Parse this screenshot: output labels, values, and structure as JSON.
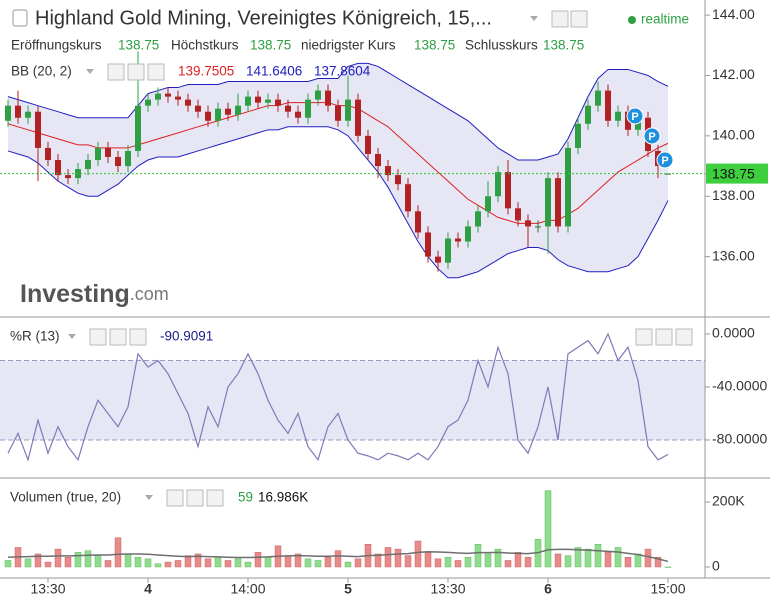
{
  "chart_data": [
    {
      "type": "candlestick",
      "title": "Highland Gold Mining, Vereinigtes Königreich, 15,...",
      "status": "realtime",
      "ohlc_names": [
        "Eröffnungskurs",
        "Höchstkurs",
        "niedrigster Kurs",
        "Schlusskurs"
      ],
      "categories": [
        null,
        null,
        null,
        null,
        "13:30",
        null,
        null,
        null,
        null,
        null,
        null,
        null,
        null,
        null,
        "4",
        null,
        null,
        null,
        null,
        null,
        null,
        null,
        null,
        null,
        "14:00",
        null,
        null,
        null,
        null,
        null,
        null,
        null,
        null,
        null,
        "5",
        null,
        null,
        null,
        null,
        null,
        null,
        null,
        null,
        null,
        "13:30",
        null,
        null,
        null,
        null,
        null,
        null,
        null,
        null,
        null,
        "6",
        null,
        null,
        null,
        null,
        null,
        null,
        null,
        null,
        null,
        null,
        null,
        "15:00"
      ],
      "open": [
        140.5,
        141.0,
        140.6,
        140.8,
        139.6,
        139.2,
        138.7,
        138.6,
        138.9,
        139.2,
        139.6,
        139.3,
        139.0,
        139.5,
        141.0,
        141.2,
        141.4,
        141.3,
        141.2,
        141.0,
        140.8,
        140.5,
        140.9,
        140.7,
        141.0,
        141.3,
        141.1,
        141.2,
        141.0,
        140.8,
        140.6,
        141.2,
        141.5,
        141.0,
        140.5,
        141.2,
        140.0,
        139.4,
        139.0,
        138.7,
        138.4,
        137.5,
        136.8,
        136.0,
        135.8,
        136.6,
        136.5,
        137.0,
        137.5,
        138.0,
        138.8,
        137.6,
        137.2,
        137.0,
        137.0,
        138.6,
        137.0,
        139.6,
        140.4,
        141.0,
        141.5,
        140.5,
        140.8,
        140.2,
        140.6,
        139.5,
        138.75
      ],
      "high": [
        141.2,
        141.5,
        141.0,
        141.0,
        139.8,
        139.4,
        138.9,
        139.1,
        139.4,
        139.8,
        139.8,
        139.5,
        139.7,
        142.8,
        141.4,
        141.6,
        141.6,
        141.5,
        141.4,
        141.2,
        141.0,
        141.1,
        141.1,
        141.4,
        141.5,
        141.5,
        141.4,
        141.4,
        141.2,
        141.0,
        141.4,
        141.7,
        141.7,
        141.2,
        142.0,
        141.4,
        140.2,
        139.6,
        139.2,
        138.9,
        138.6,
        137.7,
        137.0,
        136.2,
        136.8,
        136.8,
        137.2,
        137.7,
        138.5,
        139.0,
        139.2,
        137.8,
        137.4,
        137.2,
        138.8,
        138.8,
        139.8,
        140.6,
        141.2,
        141.8,
        141.7,
        141.0,
        141.0,
        140.8,
        140.8,
        139.7,
        138.75
      ],
      "low": [
        140.3,
        140.4,
        140.4,
        138.5,
        139.0,
        138.5,
        138.4,
        138.4,
        138.7,
        139.0,
        139.1,
        138.8,
        138.8,
        139.3,
        140.8,
        141.0,
        141.1,
        141.0,
        140.8,
        140.6,
        140.3,
        140.3,
        140.5,
        140.5,
        140.8,
        140.9,
        140.9,
        140.8,
        140.6,
        140.4,
        140.4,
        141.0,
        140.8,
        140.3,
        140.3,
        139.8,
        139.2,
        138.6,
        138.5,
        138.2,
        137.3,
        136.6,
        135.8,
        135.5,
        135.6,
        136.3,
        136.3,
        136.8,
        137.3,
        137.8,
        137.4,
        137.0,
        136.3,
        136.8,
        136.1,
        136.8,
        136.8,
        139.4,
        140.2,
        140.8,
        140.3,
        140.3,
        140.0,
        140.0,
        139.3,
        138.6,
        138.75
      ],
      "close": [
        141.0,
        140.6,
        140.8,
        139.6,
        139.2,
        138.7,
        138.6,
        138.9,
        139.2,
        139.6,
        139.3,
        139.0,
        139.5,
        141.0,
        141.2,
        141.4,
        141.3,
        141.2,
        141.0,
        140.8,
        140.5,
        140.9,
        140.7,
        141.0,
        141.3,
        141.1,
        141.2,
        141.0,
        140.8,
        140.6,
        141.2,
        141.5,
        141.0,
        140.5,
        141.2,
        140.0,
        139.4,
        139.0,
        138.7,
        138.4,
        137.5,
        136.8,
        136.0,
        135.8,
        136.6,
        136.5,
        137.0,
        137.5,
        138.0,
        138.8,
        137.6,
        137.2,
        137.0,
        137.0,
        138.6,
        137.0,
        139.6,
        140.4,
        141.0,
        141.5,
        140.5,
        140.8,
        140.2,
        140.6,
        139.5,
        139.0,
        138.75
      ],
      "up_color": "#2ea043",
      "down_color": "#b22222",
      "indicator": "BB (20, 2)",
      "bands": [
        {
          "color": "#e02020",
          "values": [
            140.4,
            140.3,
            140.2,
            140.1,
            140.0,
            139.9,
            139.8,
            139.7,
            139.7,
            139.6,
            139.6,
            139.6,
            139.6,
            139.7,
            139.8,
            139.9,
            140.0,
            140.1,
            140.2,
            140.3,
            140.4,
            140.5,
            140.6,
            140.7,
            140.8,
            140.9,
            141.0,
            141.0,
            141.1,
            141.1,
            141.1,
            141.1,
            141.1,
            141.0,
            141.0,
            140.9,
            140.7,
            140.5,
            140.3,
            140.0,
            139.7,
            139.4,
            139.1,
            138.8,
            138.5,
            138.2,
            137.9,
            137.7,
            137.5,
            137.3,
            137.2,
            137.1,
            137.1,
            137.1,
            137.2,
            137.2,
            137.4,
            137.6,
            137.9,
            138.2,
            138.5,
            138.8,
            139.0,
            139.2,
            139.4,
            139.6,
            139.7505
          ]
        },
        {
          "color": "#2020c0",
          "values": [
            141.3,
            141.2,
            141.1,
            141.0,
            140.9,
            140.8,
            140.7,
            140.6,
            140.6,
            140.6,
            140.6,
            140.6,
            140.6,
            141.0,
            141.4,
            141.5,
            141.6,
            141.6,
            141.7,
            141.7,
            141.7,
            141.7,
            141.8,
            141.8,
            141.8,
            141.8,
            141.8,
            141.8,
            141.8,
            141.8,
            141.8,
            141.9,
            141.9,
            141.9,
            142.3,
            142.4,
            142.4,
            142.3,
            142.1,
            141.9,
            141.7,
            141.5,
            141.3,
            141.1,
            140.9,
            140.7,
            140.5,
            140.2,
            139.9,
            139.6,
            139.4,
            139.2,
            139.2,
            139.2,
            139.3,
            139.4,
            139.9,
            140.6,
            141.3,
            141.9,
            142.2,
            142.2,
            142.2,
            142.1,
            142.0,
            141.8,
            141.6406
          ]
        },
        {
          "color": "#2020c0",
          "values": [
            139.5,
            139.4,
            139.3,
            139.1,
            138.8,
            138.5,
            138.3,
            138.1,
            138.0,
            138.0,
            138.2,
            138.4,
            138.7,
            139.0,
            139.2,
            139.3,
            139.3,
            139.3,
            139.4,
            139.5,
            139.6,
            139.7,
            139.8,
            139.9,
            140.0,
            140.1,
            140.2,
            140.2,
            140.3,
            140.3,
            140.3,
            140.3,
            140.3,
            140.2,
            140.0,
            139.6,
            139.2,
            138.8,
            138.3,
            137.7,
            137.1,
            136.5,
            136.0,
            135.6,
            135.3,
            135.3,
            135.4,
            135.5,
            135.7,
            135.9,
            136.1,
            136.2,
            136.3,
            136.3,
            136.2,
            135.9,
            135.7,
            135.6,
            135.5,
            135.5,
            135.5,
            135.6,
            135.7,
            136.0,
            136.6,
            137.2,
            137.8604
          ]
        }
      ],
      "band_fill": "#e6e6f5",
      "event_markers": [
        "P",
        "P",
        "P"
      ],
      "watermark": [
        "Investing",
        ".com"
      ],
      "ylim": [
        134,
        144.5
      ],
      "yticks": [
        {
          "value": 136,
          "label": "136.00"
        },
        {
          "value": 138,
          "label": "138.00"
        },
        {
          "value": 140,
          "label": "140.00"
        },
        {
          "value": 142,
          "label": "142.00"
        },
        {
          "value": 144,
          "label": "144.00"
        }
      ]
    },
    {
      "type": "line",
      "title": "%R (13)",
      "values": [
        -90,
        -75,
        -95,
        -65,
        -90,
        -70,
        -85,
        -95,
        -70,
        -50,
        -60,
        -70,
        -55,
        -15,
        -25,
        -20,
        -30,
        -45,
        -60,
        -85,
        -55,
        -70,
        -40,
        -30,
        -15,
        -30,
        -50,
        -65,
        -75,
        -60,
        -85,
        -95,
        -70,
        -60,
        -80,
        -90,
        -92,
        -95,
        -90,
        -92,
        -95,
        -90,
        -95,
        -85,
        -70,
        -65,
        -50,
        -20,
        -40,
        -10,
        -30,
        -80,
        -90,
        -70,
        -40,
        -80,
        -15,
        -10,
        -5,
        -15,
        0,
        -20,
        -10,
        -35,
        -85,
        -95,
        -90.9091
      ],
      "color": "#7b7bb8",
      "bands": [
        -20,
        -80
      ],
      "band_fill": "#e6e6f5",
      "ylim": [
        -108.7,
        12.8
      ],
      "yticks": [
        {
          "value": 0,
          "label": "0.0000"
        },
        {
          "value": -40,
          "label": "-40.0000"
        },
        {
          "value": -80,
          "label": "-80.0000"
        }
      ]
    },
    {
      "type": "bar",
      "title": "Volumen (true, 20)",
      "values": [
        20000,
        60000,
        25000,
        40000,
        15000,
        55000,
        30000,
        45000,
        50000,
        35000,
        20000,
        90000,
        40000,
        30000,
        25000,
        10000,
        15000,
        20000,
        35000,
        40000,
        25000,
        30000,
        20000,
        25000,
        15000,
        45000,
        30000,
        65000,
        35000,
        40000,
        25000,
        20000,
        30000,
        50000,
        15000,
        25000,
        70000,
        40000,
        60000,
        55000,
        35000,
        80000,
        45000,
        25000,
        30000,
        20000,
        30000,
        70000,
        40000,
        55000,
        20000,
        45000,
        30000,
        85000,
        235000,
        40000,
        35000,
        60000,
        55000,
        70000,
        45000,
        60000,
        30000,
        40000,
        55000,
        30000,
        59
      ],
      "ma": [
        30000,
        31000,
        32000,
        33000,
        33000,
        34000,
        34000,
        35000,
        36000,
        37000,
        37000,
        39000,
        40000,
        40000,
        39000,
        37000,
        35000,
        33000,
        32000,
        33000,
        32000,
        31000,
        30000,
        29000,
        29000,
        30000,
        31000,
        33000,
        34000,
        35000,
        34000,
        33000,
        33000,
        34000,
        33000,
        32000,
        35000,
        36000,
        38000,
        40000,
        41000,
        45000,
        47000,
        46000,
        45000,
        43000,
        42000,
        44000,
        44000,
        45000,
        43000,
        42000,
        41000,
        44000,
        53000,
        54000,
        54000,
        53000,
        52000,
        50000,
        48000,
        46000,
        42000,
        38000,
        32000,
        25000,
        16986
      ],
      "ma_last_label": "16.986K",
      "ma_color": "#6e6e6e",
      "up_color": "#8fdc8f",
      "down_color": "#e88a8a",
      "ylim": [
        -34000,
        274000
      ],
      "yticks": [
        0,
        {
          "value": 200000,
          "label": "200K"
        }
      ]
    }
  ]
}
